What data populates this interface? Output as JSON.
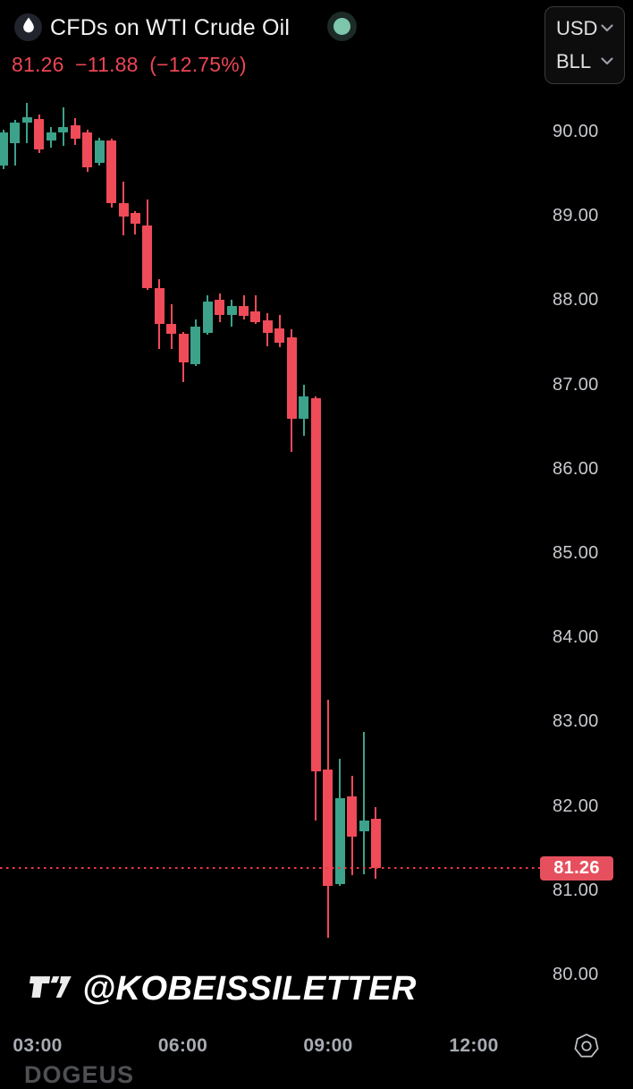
{
  "header": {
    "title": "CFDs on WTI Crude Oil",
    "last_price": "81.26",
    "change": "−11.88",
    "change_percent": "(−12.75%)",
    "currency": "USD",
    "unit": "BLL"
  },
  "price_label": {
    "value": "81.26"
  },
  "watermark": {
    "handle": "@KOBEISSILETTER"
  },
  "bottom_ticker_partial": "DOGEUS",
  "colors": {
    "background": "#000000",
    "candle_up": "#3ca28a",
    "candle_down": "#ef4b58",
    "accent_red": "#f23645",
    "price_text_red": "#ec4554",
    "label_bg_red": "#e6505e",
    "status_dot_teal": "#7dc6ac",
    "axis_text": "#c7c9ce"
  },
  "chart_data": {
    "type": "candlestick",
    "title": "CFDs on WTI Crude Oil",
    "interval_minutes": 15,
    "legend_position": "none",
    "grid": false,
    "y_axis": {
      "values": [
        90,
        89,
        88,
        87,
        86,
        85,
        84,
        83,
        82,
        81,
        80
      ],
      "labels": [
        "90.00",
        "89.00",
        "88.00",
        "87.00",
        "86.00",
        "85.00",
        "84.00",
        "83.00",
        "82.00",
        "81.00",
        "80.00"
      ],
      "range": [
        79.9,
        90.5
      ]
    },
    "x_axis": {
      "labels": [
        "03:00",
        "06:00",
        "09:00",
        "12:00"
      ]
    },
    "last_price": 81.26,
    "candles": [
      {
        "o": 89.6,
        "h": 90.02,
        "l": 89.55,
        "c": 89.99
      },
      {
        "o": 89.86,
        "h": 90.14,
        "l": 89.6,
        "c": 90.11
      },
      {
        "o": 90.11,
        "h": 90.34,
        "l": 89.86,
        "c": 90.17
      },
      {
        "o": 90.15,
        "h": 90.2,
        "l": 89.74,
        "c": 89.79
      },
      {
        "o": 89.89,
        "h": 90.05,
        "l": 89.81,
        "c": 89.99
      },
      {
        "o": 89.99,
        "h": 90.29,
        "l": 89.83,
        "c": 90.05
      },
      {
        "o": 90.07,
        "h": 90.16,
        "l": 89.84,
        "c": 89.92
      },
      {
        "o": 89.99,
        "h": 90.02,
        "l": 89.52,
        "c": 89.58
      },
      {
        "o": 89.63,
        "h": 89.93,
        "l": 89.6,
        "c": 89.89
      },
      {
        "o": 89.89,
        "h": 89.91,
        "l": 89.1,
        "c": 89.15
      },
      {
        "o": 89.15,
        "h": 89.41,
        "l": 88.77,
        "c": 88.99
      },
      {
        "o": 89.03,
        "h": 89.06,
        "l": 88.78,
        "c": 88.91
      },
      {
        "o": 88.89,
        "h": 89.19,
        "l": 88.12,
        "c": 88.14
      },
      {
        "o": 88.14,
        "h": 88.25,
        "l": 87.42,
        "c": 87.72
      },
      {
        "o": 87.72,
        "h": 87.95,
        "l": 87.42,
        "c": 87.6
      },
      {
        "o": 87.6,
        "h": 87.62,
        "l": 87.03,
        "c": 87.26
      },
      {
        "o": 87.24,
        "h": 87.77,
        "l": 87.22,
        "c": 87.69
      },
      {
        "o": 87.61,
        "h": 88.06,
        "l": 87.59,
        "c": 87.98
      },
      {
        "o": 88.0,
        "h": 88.08,
        "l": 87.74,
        "c": 87.82
      },
      {
        "o": 87.82,
        "h": 88.0,
        "l": 87.69,
        "c": 87.93
      },
      {
        "o": 87.93,
        "h": 88.06,
        "l": 87.77,
        "c": 87.81
      },
      {
        "o": 87.87,
        "h": 88.06,
        "l": 87.72,
        "c": 87.74
      },
      {
        "o": 87.76,
        "h": 87.85,
        "l": 87.45,
        "c": 87.61
      },
      {
        "o": 87.66,
        "h": 87.82,
        "l": 87.44,
        "c": 87.49
      },
      {
        "o": 87.56,
        "h": 87.65,
        "l": 86.2,
        "c": 86.59
      },
      {
        "o": 86.59,
        "h": 87.0,
        "l": 86.39,
        "c": 86.86
      },
      {
        "o": 86.84,
        "h": 86.86,
        "l": 81.83,
        "c": 82.41
      },
      {
        "o": 82.43,
        "h": 83.26,
        "l": 80.43,
        "c": 81.05
      },
      {
        "o": 81.07,
        "h": 82.56,
        "l": 81.05,
        "c": 82.09
      },
      {
        "o": 82.11,
        "h": 82.36,
        "l": 81.18,
        "c": 81.64
      },
      {
        "o": 81.7,
        "h": 82.88,
        "l": 81.19,
        "c": 81.83
      },
      {
        "o": 81.85,
        "h": 81.99,
        "l": 81.14,
        "c": 81.26
      }
    ]
  }
}
